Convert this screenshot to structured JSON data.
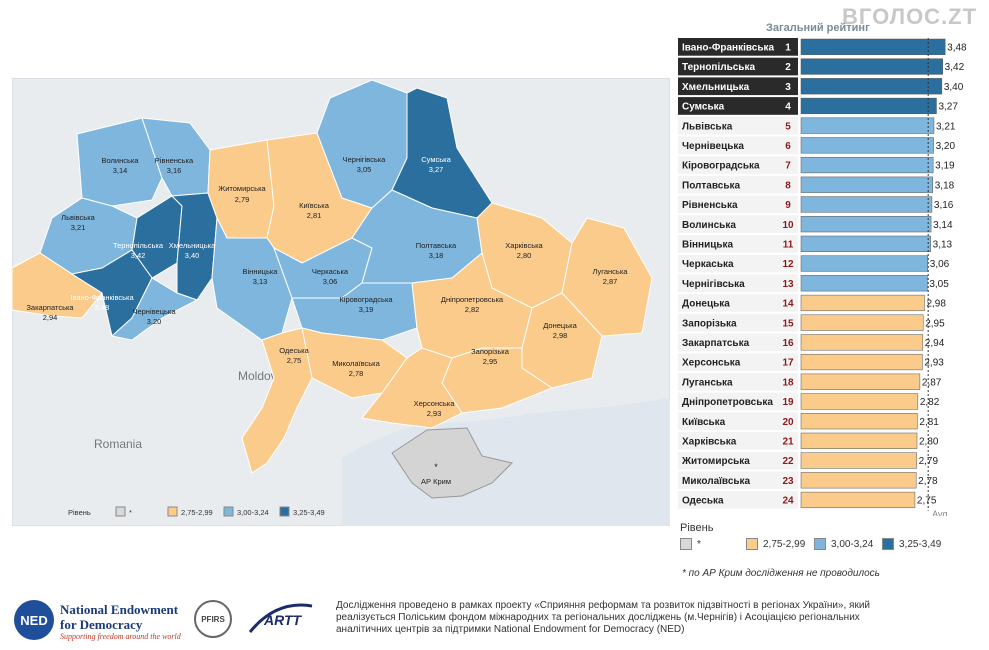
{
  "watermark": "ВГОЛОС.ZT",
  "header_title": "Загальний рейтинг",
  "map": {
    "country_labels": [
      "Moldova",
      "Romania"
    ],
    "legend_title": "Рівень",
    "legend": [
      {
        "label": "*",
        "color": "#d9d9d9"
      },
      {
        "label": "2,75-2,99",
        "color": "#fbcb8b"
      },
      {
        "label": "3,00-3,24",
        "color": "#7eb6dd"
      },
      {
        "label": "3,25-3,49",
        "color": "#2b6f9e"
      }
    ],
    "crimea_label": "АР Крим",
    "crimea_mark": "*"
  },
  "chart_data": {
    "type": "bar",
    "title": "Загальний рейтинг",
    "categories": [
      "Івано-Франківська",
      "Тернопільська",
      "Хмельницька",
      "Сумська",
      "Львівська",
      "Чернівецька",
      "Кіровоградська",
      "Полтавська",
      "Рівненська",
      "Волинська",
      "Вінницька",
      "Черкаська",
      "Чернігівська",
      "Донецька",
      "Запорізька",
      "Закарпатська",
      "Херсонська",
      "Луганська",
      "Дніпропетровська",
      "Київська",
      "Харківська",
      "Житомирська",
      "Миколаївська",
      "Одеська"
    ],
    "ranks": [
      "1",
      "2",
      "3",
      "4",
      "5",
      "6",
      "7",
      "8",
      "9",
      "10",
      "11",
      "12",
      "13",
      "14",
      "15",
      "16",
      "17",
      "18",
      "19",
      "20",
      "21",
      "22",
      "23",
      "24"
    ],
    "values": [
      3.48,
      3.42,
      3.4,
      3.27,
      3.21,
      3.2,
      3.19,
      3.18,
      3.16,
      3.14,
      3.13,
      3.06,
      3.05,
      2.98,
      2.95,
      2.94,
      2.93,
      2.87,
      2.82,
      2.81,
      2.8,
      2.79,
      2.78,
      2.75
    ],
    "value_labels": [
      "3,48",
      "3,42",
      "3,40",
      "3,27",
      "3,21",
      "3,20",
      "3,19",
      "3,18",
      "3,16",
      "3,14",
      "3,13",
      "3,06",
      "3,05",
      "2,98",
      "2,95",
      "2,94",
      "2,93",
      "2,87",
      "2,82",
      "2,81",
      "2,80",
      "2,79",
      "2,78",
      "2,75"
    ],
    "avg_label": "Avg",
    "avg_value": 3.07,
    "colors": {
      "low": "#fbcb8b",
      "mid": "#7eb6dd",
      "high": "#2b6f9e"
    }
  },
  "region_labels": {
    "volyn": [
      "Волинська",
      "3,14"
    ],
    "rivne": [
      "Рівненська",
      "3,16"
    ],
    "lviv": [
      "Львівська",
      "3,21"
    ],
    "ternopil": [
      "Тернопільська",
      "3,42"
    ],
    "khmel": [
      "Хмельницька",
      "3,40"
    ],
    "zakarp": [
      "Закарпатська",
      "2,94"
    ],
    "ifr": [
      "Івано-Франківська",
      "3,48"
    ],
    "cherniv": [
      "Чернівецька",
      "3,20"
    ],
    "zhyt": [
      "Житомирська",
      "2,79"
    ],
    "kyiv": [
      "Київська",
      "2,81"
    ],
    "chernih": [
      "Чернігівська",
      "3,05"
    ],
    "sumy": [
      "Сумська",
      "3,27"
    ],
    "vinn": [
      "Вінницька",
      "3,13"
    ],
    "cherk": [
      "Черкаська",
      "3,06"
    ],
    "poltava": [
      "Полтавська",
      "3,18"
    ],
    "kharkiv": [
      "Харківська",
      "2,80"
    ],
    "luhansk": [
      "Луганська",
      "2,87"
    ],
    "kirov": [
      "Кіровоградська",
      "3,19"
    ],
    "dnipro": [
      "Дніпропетровська",
      "2,82"
    ],
    "donetsk": [
      "Донецька",
      "2,98"
    ],
    "odesa": [
      "Одеська",
      "2,75"
    ],
    "mykol": [
      "Миколаївська",
      "2,78"
    ],
    "zapor": [
      "Запорізька",
      "2,95"
    ],
    "kherson": [
      "Херсонська",
      "2,93"
    ]
  },
  "legend_right": {
    "title": "Рівень",
    "items": [
      {
        "label": "*",
        "color": "#d9d9d9"
      },
      {
        "label": "2,75-2,99",
        "color": "#fbcb8b"
      },
      {
        "label": "3,00-3,24",
        "color": "#7eb6dd"
      },
      {
        "label": "3,25-3,49",
        "color": "#2b6f9e"
      }
    ]
  },
  "note": "* по АР Крим дослідження не проводилось",
  "footer": {
    "ned_abbr": "NED",
    "ned_name": "National Endowment for Democracy",
    "ned_tagline": "Supporting freedom around the world",
    "pfirs": "PFIRS",
    "artt": "ARTT",
    "text": "Дослідження проведено в рамках проекту «Сприяння реформам та розвиток підзвітності в регіонах України», який реалізується  Поліським фондом міжнародних та регіональних досліджень (м.Чернігів) і Асоціацією регіональних аналітичних центрів за підтримки National Endowment for Democracy (NED)"
  }
}
